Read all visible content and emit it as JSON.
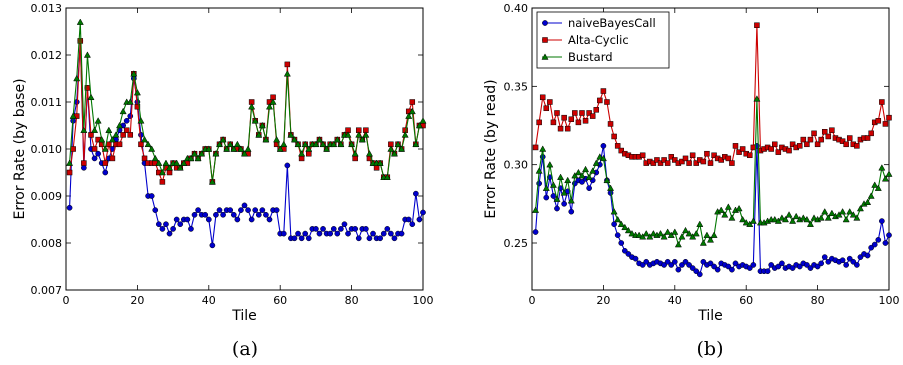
{
  "chart_data": [
    {
      "type": "line",
      "caption": "(a)",
      "xlabel": "Tile",
      "ylabel": "Error Rate (by base)",
      "xlim": [
        0,
        100
      ],
      "ylim": [
        0.007,
        0.013
      ],
      "xticks": [
        0,
        20,
        40,
        60,
        80,
        100
      ],
      "xtick_labels": [
        "0",
        "20",
        "40",
        "60",
        "80",
        "100"
      ],
      "yticks": [
        0.007,
        0.008,
        0.009,
        0.01,
        0.011,
        0.012,
        0.013
      ],
      "ytick_labels": [
        "0.007",
        "0.008",
        "0.009",
        "0.010",
        "0.011",
        "0.012",
        "0.013"
      ],
      "legend": false,
      "x_start": 1,
      "series": [
        {
          "name": "naiveBayesCall",
          "color": "#0000cc",
          "marker": "circle",
          "values": [
            0.00875,
            0.0106,
            0.011,
            0.0123,
            0.0096,
            0.0113,
            0.01,
            0.0098,
            0.0099,
            0.0097,
            0.0095,
            0.0098,
            0.01,
            0.0102,
            0.0104,
            0.0105,
            0.0106,
            0.0107,
            0.0115,
            0.011,
            0.0103,
            0.0097,
            0.009,
            0.009,
            0.0087,
            0.0084,
            0.0083,
            0.0084,
            0.0082,
            0.0083,
            0.0085,
            0.0084,
            0.0085,
            0.0085,
            0.0083,
            0.0086,
            0.0087,
            0.0086,
            0.0086,
            0.0085,
            0.00795,
            0.0086,
            0.0087,
            0.0086,
            0.0087,
            0.0087,
            0.0086,
            0.0085,
            0.0087,
            0.0088,
            0.0087,
            0.0085,
            0.0087,
            0.0086,
            0.0087,
            0.0086,
            0.0085,
            0.0087,
            0.0087,
            0.0082,
            0.0082,
            0.00965,
            0.0081,
            0.0081,
            0.0082,
            0.0081,
            0.0082,
            0.0081,
            0.0083,
            0.0083,
            0.0082,
            0.0083,
            0.0082,
            0.0082,
            0.0083,
            0.0082,
            0.0083,
            0.0084,
            0.0082,
            0.0083,
            0.0083,
            0.0081,
            0.0083,
            0.0083,
            0.0081,
            0.0082,
            0.0081,
            0.0081,
            0.0082,
            0.0083,
            0.0082,
            0.0081,
            0.0082,
            0.0082,
            0.0085,
            0.0085,
            0.0084,
            0.00905,
            0.0085,
            0.00865
          ]
        },
        {
          "name": "Alta-Cyclic",
          "color": "#cc0000",
          "marker": "square",
          "values": [
            0.0095,
            0.01,
            0.0107,
            0.0123,
            0.0097,
            0.0113,
            0.0103,
            0.01,
            0.0102,
            0.0101,
            0.0097,
            0.0101,
            0.0098,
            0.0101,
            0.0101,
            0.0103,
            0.0104,
            0.0103,
            0.0116,
            0.0109,
            0.0101,
            0.0098,
            0.0097,
            0.0097,
            0.0097,
            0.0095,
            0.0093,
            0.0096,
            0.0095,
            0.0097,
            0.0096,
            0.0096,
            0.0097,
            0.0097,
            0.0098,
            0.0099,
            0.0098,
            0.0099,
            0.01,
            0.01,
            0.0093,
            0.0099,
            0.0101,
            0.0102,
            0.01,
            0.0101,
            0.01,
            0.01,
            0.01,
            0.0099,
            0.0099,
            0.011,
            0.0106,
            0.0103,
            0.0105,
            0.0102,
            0.011,
            0.0111,
            0.0101,
            0.01,
            0.01,
            0.0118,
            0.0103,
            0.0102,
            0.0101,
            0.0098,
            0.0101,
            0.0099,
            0.0101,
            0.0101,
            0.0102,
            0.0101,
            0.01,
            0.0101,
            0.0101,
            0.0102,
            0.0101,
            0.0103,
            0.0104,
            0.0101,
            0.0098,
            0.0104,
            0.0102,
            0.0104,
            0.0098,
            0.0097,
            0.0096,
            0.0097,
            0.0094,
            0.0094,
            0.0101,
            0.0099,
            0.0101,
            0.01,
            0.0104,
            0.0108,
            0.011,
            0.0101,
            0.0105,
            0.0105
          ]
        },
        {
          "name": "Bustard",
          "color": "#007700",
          "marker": "triangle",
          "values": [
            0.0097,
            0.0107,
            0.0115,
            0.0127,
            0.0104,
            0.012,
            0.0111,
            0.0104,
            0.0106,
            0.0102,
            0.01,
            0.0104,
            0.0102,
            0.0103,
            0.0105,
            0.0108,
            0.011,
            0.011,
            0.0116,
            0.0112,
            0.0106,
            0.0102,
            0.0101,
            0.01,
            0.0098,
            0.0097,
            0.0095,
            0.0097,
            0.0096,
            0.0097,
            0.0097,
            0.0096,
            0.0097,
            0.0098,
            0.0098,
            0.0099,
            0.0098,
            0.0099,
            0.01,
            0.01,
            0.0093,
            0.0099,
            0.0101,
            0.0102,
            0.01,
            0.0101,
            0.01,
            0.0101,
            0.01,
            0.0099,
            0.01,
            0.0109,
            0.0106,
            0.0103,
            0.0105,
            0.0102,
            0.0109,
            0.011,
            0.0102,
            0.01,
            0.0101,
            0.0116,
            0.0103,
            0.0102,
            0.0101,
            0.0099,
            0.0101,
            0.01,
            0.0101,
            0.0101,
            0.0102,
            0.0101,
            0.01,
            0.0101,
            0.0101,
            0.0102,
            0.0101,
            0.0103,
            0.0103,
            0.0101,
            0.0099,
            0.0103,
            0.0102,
            0.0103,
            0.0099,
            0.0097,
            0.0097,
            0.0097,
            0.0094,
            0.0094,
            0.01,
            0.0099,
            0.0101,
            0.01,
            0.0103,
            0.0107,
            0.0108,
            0.0101,
            0.0105,
            0.0106
          ]
        }
      ]
    },
    {
      "type": "line",
      "caption": "(b)",
      "xlabel": "Tile",
      "ylabel": "Error Rate (by read)",
      "xlim": [
        0,
        100
      ],
      "ylim": [
        0.22,
        0.4
      ],
      "xticks": [
        0,
        20,
        40,
        60,
        80,
        100
      ],
      "xtick_labels": [
        "0",
        "20",
        "40",
        "60",
        "80",
        "100"
      ],
      "yticks": [
        0.25,
        0.3,
        0.35,
        0.4
      ],
      "ytick_labels": [
        "0.25",
        "0.30",
        "0.35",
        "0.40"
      ],
      "legend": true,
      "legend_position": "top-left",
      "x_start": 1,
      "series": [
        {
          "name": "naiveBayesCall",
          "color": "#0000cc",
          "marker": "circle",
          "values": [
            0.257,
            0.288,
            0.305,
            0.279,
            0.292,
            0.28,
            0.272,
            0.285,
            0.275,
            0.283,
            0.27,
            0.288,
            0.29,
            0.289,
            0.291,
            0.285,
            0.29,
            0.295,
            0.3,
            0.312,
            0.29,
            0.282,
            0.262,
            0.255,
            0.25,
            0.245,
            0.243,
            0.241,
            0.24,
            0.237,
            0.236,
            0.238,
            0.236,
            0.237,
            0.238,
            0.237,
            0.236,
            0.238,
            0.236,
            0.238,
            0.233,
            0.236,
            0.238,
            0.236,
            0.234,
            0.232,
            0.23,
            0.238,
            0.236,
            0.237,
            0.235,
            0.233,
            0.237,
            0.236,
            0.235,
            0.233,
            0.237,
            0.235,
            0.236,
            0.235,
            0.234,
            0.236,
            0.312,
            0.232,
            0.232,
            0.232,
            0.236,
            0.234,
            0.235,
            0.237,
            0.234,
            0.235,
            0.234,
            0.236,
            0.235,
            0.237,
            0.236,
            0.234,
            0.236,
            0.235,
            0.237,
            0.241,
            0.238,
            0.24,
            0.239,
            0.238,
            0.239,
            0.236,
            0.24,
            0.238,
            0.236,
            0.241,
            0.243,
            0.242,
            0.247,
            0.249,
            0.252,
            0.264,
            0.25,
            0.255
          ]
        },
        {
          "name": "Alta-Cyclic",
          "color": "#cc0000",
          "marker": "square",
          "values": [
            0.311,
            0.327,
            0.343,
            0.336,
            0.34,
            0.327,
            0.333,
            0.323,
            0.33,
            0.323,
            0.329,
            0.333,
            0.327,
            0.333,
            0.328,
            0.333,
            0.331,
            0.335,
            0.341,
            0.347,
            0.34,
            0.326,
            0.318,
            0.312,
            0.309,
            0.307,
            0.306,
            0.305,
            0.305,
            0.305,
            0.306,
            0.301,
            0.302,
            0.301,
            0.303,
            0.301,
            0.303,
            0.301,
            0.305,
            0.303,
            0.301,
            0.302,
            0.304,
            0.301,
            0.306,
            0.301,
            0.303,
            0.302,
            0.307,
            0.301,
            0.306,
            0.304,
            0.303,
            0.305,
            0.304,
            0.301,
            0.312,
            0.308,
            0.31,
            0.307,
            0.306,
            0.311,
            0.389,
            0.309,
            0.31,
            0.311,
            0.31,
            0.313,
            0.308,
            0.311,
            0.31,
            0.309,
            0.313,
            0.311,
            0.312,
            0.316,
            0.313,
            0.316,
            0.32,
            0.313,
            0.316,
            0.321,
            0.318,
            0.322,
            0.317,
            0.316,
            0.315,
            0.313,
            0.317,
            0.313,
            0.312,
            0.316,
            0.317,
            0.317,
            0.32,
            0.327,
            0.328,
            0.34,
            0.326,
            0.33
          ]
        },
        {
          "name": "Bustard",
          "color": "#007700",
          "marker": "triangle",
          "values": [
            0.271,
            0.296,
            0.31,
            0.285,
            0.3,
            0.287,
            0.278,
            0.292,
            0.282,
            0.29,
            0.277,
            0.293,
            0.295,
            0.293,
            0.297,
            0.292,
            0.296,
            0.301,
            0.305,
            0.304,
            0.29,
            0.285,
            0.27,
            0.265,
            0.262,
            0.26,
            0.258,
            0.256,
            0.255,
            0.255,
            0.254,
            0.256,
            0.254,
            0.256,
            0.255,
            0.256,
            0.254,
            0.257,
            0.255,
            0.257,
            0.249,
            0.254,
            0.258,
            0.256,
            0.254,
            0.256,
            0.262,
            0.25,
            0.255,
            0.252,
            0.255,
            0.27,
            0.271,
            0.268,
            0.273,
            0.266,
            0.271,
            0.272,
            0.265,
            0.263,
            0.262,
            0.264,
            0.342,
            0.263,
            0.263,
            0.264,
            0.265,
            0.265,
            0.264,
            0.266,
            0.265,
            0.268,
            0.264,
            0.267,
            0.265,
            0.266,
            0.265,
            0.262,
            0.266,
            0.265,
            0.266,
            0.27,
            0.266,
            0.269,
            0.267,
            0.268,
            0.27,
            0.265,
            0.27,
            0.268,
            0.266,
            0.272,
            0.275,
            0.276,
            0.28,
            0.287,
            0.285,
            0.298,
            0.291,
            0.294
          ]
        }
      ]
    }
  ]
}
